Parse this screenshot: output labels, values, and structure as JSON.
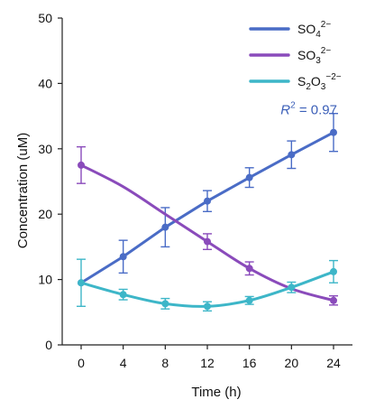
{
  "chart_data": {
    "type": "line",
    "xlabel": "Time (h)",
    "ylabel": "Concentration (uM)",
    "x": [
      0,
      4,
      8,
      12,
      16,
      20,
      24
    ],
    "xlim": [
      -1.8,
      25.8
    ],
    "ylim": [
      0,
      50
    ],
    "xticks": [
      "0",
      "4",
      "8",
      "12",
      "16",
      "20",
      "24"
    ],
    "yticks": [
      "0",
      "10",
      "20",
      "30",
      "40",
      "50"
    ],
    "grid": false,
    "legend_position": "top-right",
    "series": [
      {
        "name": "SO₄²⁻",
        "label_parts": {
          "base": "SO",
          "sub": "4",
          "sup": "2−"
        },
        "color": "#4a6cc6",
        "values": [
          9.5,
          13.5,
          18.0,
          22.0,
          25.6,
          29.1,
          32.5
        ],
        "errors": [
          0.0,
          2.5,
          3.0,
          1.6,
          1.5,
          2.1,
          2.9
        ],
        "fit": "linear"
      },
      {
        "name": "SO₃²⁻",
        "label_parts": {
          "base": "SO",
          "sub": "3",
          "sup": "2−"
        },
        "color": "#8a4bbb",
        "values": [
          27.5,
          null,
          null,
          15.8,
          11.7,
          null,
          6.8
        ],
        "errors": [
          2.8,
          0,
          0,
          1.2,
          1.0,
          0,
          0.7
        ],
        "fit": "smooth",
        "curve": [
          [
            0,
            27.5
          ],
          [
            4,
            24.2
          ],
          [
            8,
            20.0
          ],
          [
            12,
            15.8
          ],
          [
            16,
            11.7
          ],
          [
            20,
            8.6
          ],
          [
            24,
            6.8
          ]
        ]
      },
      {
        "name": "S₂O₃⁻²⁻",
        "label_parts": {
          "base": "S",
          "sub": "2",
          "mid": "O",
          "sub2": "3",
          "sup": "−2−"
        },
        "color": "#3db6c8",
        "values": [
          9.5,
          7.7,
          6.3,
          5.9,
          6.8,
          8.8,
          11.2
        ],
        "errors": [
          3.6,
          0.8,
          0.8,
          0.7,
          0.6,
          0.8,
          1.7
        ],
        "fit": "smooth"
      }
    ],
    "annotation": {
      "prefix": "R",
      "sup": "2",
      "text": " = 0.97",
      "x": 24,
      "y": 35,
      "color": "#3b5fb8"
    }
  }
}
